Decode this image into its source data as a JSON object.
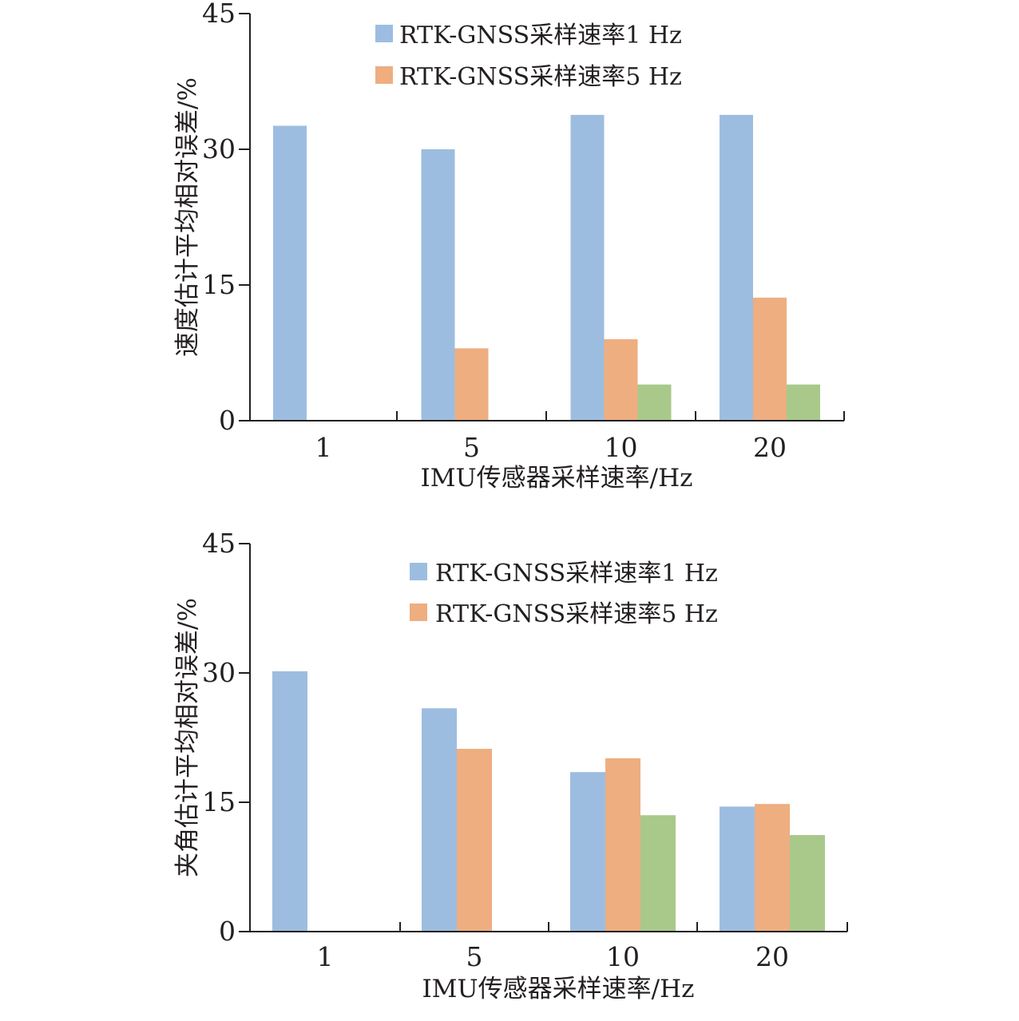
{
  "colors": {
    "series_1hz": "#9dbde0",
    "series_5hz": "#eeae80",
    "series_10hz": "#a8c98a",
    "axis": "#231f20"
  },
  "chart_data": [
    {
      "type": "bar",
      "categories": [
        "1",
        "5",
        "10",
        "20"
      ],
      "xlabel": "IMU传感器采样速率/Hz",
      "ylabel": "速度估计平均相对误差/%",
      "ylim": [
        0,
        45
      ],
      "yticks": [
        "0",
        "15",
        "30",
        "45"
      ],
      "grid": false,
      "legend_position": "top-center",
      "series": [
        {
          "name": "RTK-GNSS采样速率1 Hz",
          "color": "#9dbde0",
          "values": [
            32.6,
            30.0,
            33.8,
            33.8
          ]
        },
        {
          "name": "RTK-GNSS采样速率5 Hz",
          "color": "#eeae80",
          "values": [
            null,
            8.0,
            9.0,
            13.6
          ]
        },
        {
          "color": "#a8c98a",
          "values": [
            null,
            null,
            4.0,
            4.0
          ]
        }
      ]
    },
    {
      "type": "bar",
      "categories": [
        "1",
        "5",
        "10",
        "20"
      ],
      "xlabel": "IMU传感器采样速率/Hz",
      "ylabel": "夹角估计平均相对误差/%",
      "ylim": [
        0,
        45
      ],
      "yticks": [
        "0",
        "15",
        "30",
        "45"
      ],
      "grid": false,
      "legend_position": "top-center",
      "series": [
        {
          "name": "RTK-GNSS采样速率1 Hz",
          "color": "#9dbde0",
          "values": [
            30.2,
            25.9,
            18.5,
            14.5
          ]
        },
        {
          "name": "RTK-GNSS采样速率5 Hz",
          "color": "#eeae80",
          "values": [
            null,
            21.2,
            20.1,
            14.8
          ]
        },
        {
          "color": "#a8c98a",
          "values": [
            null,
            null,
            13.5,
            11.2
          ]
        }
      ]
    }
  ]
}
